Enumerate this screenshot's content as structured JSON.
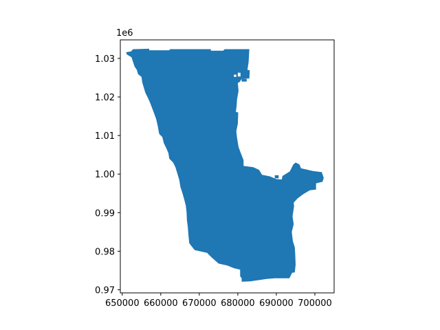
{
  "chart_data": {
    "type": "area",
    "title": "",
    "xlabel": "",
    "ylabel": "",
    "y_offset_label": "1e6",
    "xlim": [
      649500,
      705000
    ],
    "ylim": [
      969200,
      1034800
    ],
    "x_ticks": [
      650000,
      660000,
      670000,
      680000,
      690000,
      700000
    ],
    "x_tick_labels": [
      "650000",
      "660000",
      "670000",
      "680000",
      "690000",
      "700000"
    ],
    "y_ticks": [
      970000,
      980000,
      990000,
      1000000,
      1010000,
      1020000,
      1030000
    ],
    "y_tick_labels": [
      "0.97",
      "0.98",
      "0.99",
      "1.00",
      "1.01",
      "1.02",
      "1.03"
    ],
    "grid": false,
    "legend": "none",
    "fill_color": "#1f77b4",
    "polygon": [
      [
        653200,
        1032400
      ],
      [
        657000,
        1032500
      ],
      [
        657000,
        1032100
      ],
      [
        662200,
        1032100
      ],
      [
        662400,
        1032400
      ],
      [
        673000,
        1032400
      ],
      [
        673000,
        1032000
      ],
      [
        676200,
        1032000
      ],
      [
        676600,
        1032400
      ],
      [
        683000,
        1032400
      ],
      [
        682800,
        1029000
      ],
      [
        682500,
        1027000
      ],
      [
        683100,
        1026900
      ],
      [
        683000,
        1024800
      ],
      [
        681000,
        1024700
      ],
      [
        680500,
        1023900
      ],
      [
        680000,
        1023600
      ],
      [
        680200,
        1021600
      ],
      [
        679800,
        1019400
      ],
      [
        679700,
        1017800
      ],
      [
        679500,
        1016100
      ],
      [
        680100,
        1016000
      ],
      [
        680000,
        1013000
      ],
      [
        679600,
        1011100
      ],
      [
        679800,
        1009400
      ],
      [
        680200,
        1007000
      ],
      [
        680900,
        1005100
      ],
      [
        681500,
        1003600
      ],
      [
        681500,
        1002100
      ],
      [
        684000,
        1001800
      ],
      [
        685500,
        1001100
      ],
      [
        686300,
        999800
      ],
      [
        688400,
        999400
      ],
      [
        690000,
        998700
      ],
      [
        691400,
        998600
      ],
      [
        691600,
        999500
      ],
      [
        693500,
        1000700
      ],
      [
        694400,
        1002500
      ],
      [
        695000,
        1003000
      ],
      [
        696000,
        1002500
      ],
      [
        696400,
        1001500
      ],
      [
        699500,
        1000800
      ],
      [
        701800,
        1000500
      ],
      [
        702300,
        999000
      ],
      [
        702000,
        998000
      ],
      [
        700300,
        997600
      ],
      [
        700300,
        996000
      ],
      [
        698700,
        995800
      ],
      [
        697000,
        994800
      ],
      [
        695500,
        993700
      ],
      [
        694500,
        992600
      ],
      [
        694600,
        991600
      ],
      [
        694200,
        989000
      ],
      [
        694500,
        987000
      ],
      [
        694000,
        985000
      ],
      [
        694300,
        982600
      ],
      [
        694800,
        981000
      ],
      [
        694900,
        979300
      ],
      [
        695000,
        976500
      ],
      [
        694800,
        974500
      ],
      [
        694100,
        974400
      ],
      [
        693400,
        973000
      ],
      [
        689600,
        973000
      ],
      [
        687500,
        972800
      ],
      [
        683200,
        972200
      ],
      [
        681000,
        972100
      ],
      [
        681000,
        973000
      ],
      [
        680600,
        973500
      ],
      [
        680600,
        975200
      ],
      [
        679000,
        975600
      ],
      [
        677300,
        976300
      ],
      [
        675000,
        976800
      ],
      [
        673200,
        978400
      ],
      [
        672000,
        979600
      ],
      [
        668800,
        980300
      ],
      [
        667600,
        981800
      ],
      [
        667400,
        982100
      ],
      [
        667200,
        984000
      ],
      [
        667000,
        986400
      ],
      [
        666800,
        988000
      ],
      [
        666700,
        990000
      ],
      [
        666500,
        991800
      ],
      [
        666200,
        993000
      ],
      [
        665700,
        994800
      ],
      [
        665100,
        996700
      ],
      [
        664800,
        998500
      ],
      [
        664300,
        1000200
      ],
      [
        663800,
        1001800
      ],
      [
        663200,
        1003000
      ],
      [
        662200,
        1004000
      ],
      [
        662000,
        1005400
      ],
      [
        661500,
        1006600
      ],
      [
        660800,
        1008000
      ],
      [
        660400,
        1009600
      ],
      [
        659600,
        1010400
      ],
      [
        659200,
        1012500
      ],
      [
        658800,
        1014300
      ],
      [
        658200,
        1015900
      ],
      [
        657700,
        1017300
      ],
      [
        657100,
        1018800
      ],
      [
        656500,
        1020100
      ],
      [
        656000,
        1021100
      ],
      [
        655600,
        1022400
      ],
      [
        655200,
        1023800
      ],
      [
        655000,
        1025200
      ],
      [
        654100,
        1025900
      ],
      [
        653800,
        1027000
      ],
      [
        653200,
        1027900
      ],
      [
        652800,
        1029100
      ],
      [
        652400,
        1030300
      ],
      [
        651200,
        1031000
      ],
      [
        651000,
        1031600
      ],
      [
        652300,
        1031800
      ],
      [
        652800,
        1032400
      ],
      [
        653200,
        1032400
      ]
    ],
    "holes": [
      [
        [
          680000,
          1026300
        ],
        [
          680700,
          1026300
        ],
        [
          680700,
          1025300
        ],
        [
          680000,
          1025300
        ]
      ],
      [
        [
          681000,
          1024700
        ],
        [
          682300,
          1024700
        ],
        [
          682300,
          1024000
        ],
        [
          681000,
          1024000
        ]
      ],
      [
        [
          679000,
          1025800
        ],
        [
          679600,
          1025800
        ],
        [
          679600,
          1025200
        ],
        [
          679000,
          1025200
        ]
      ],
      [
        [
          689600,
          999700
        ],
        [
          690600,
          999700
        ],
        [
          690600,
          998900
        ],
        [
          689600,
          998900
        ]
      ]
    ]
  }
}
